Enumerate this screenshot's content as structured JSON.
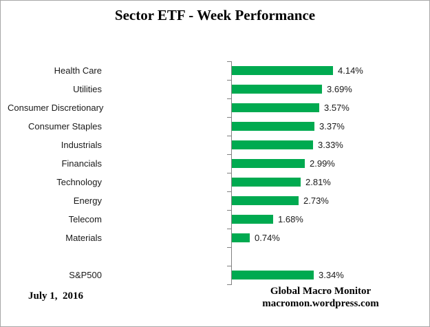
{
  "title": "Sector ETF - Week Performance",
  "footer": {
    "date": "July 1,  2016",
    "source_line1": "Global Macro Monitor",
    "source_line2": "macromon.wordpress.com"
  },
  "colors": {
    "bar": "#00AA50",
    "axis": "#808080",
    "border": "#a6a6a6",
    "text": "#1a1a1a"
  },
  "chart_data": {
    "type": "bar",
    "orientation": "horizontal",
    "title": "Sector ETF - Week Performance",
    "categories": [
      "Health Care",
      "Utilities",
      "Consumer Discretionary",
      "Consumer Staples",
      "Industrials",
      "Financials",
      "Technology",
      "Energy",
      "Telecom",
      "Materials",
      "",
      "S&P500"
    ],
    "values": [
      4.14,
      3.69,
      3.57,
      3.37,
      3.33,
      2.99,
      2.81,
      2.73,
      1.68,
      0.74,
      null,
      3.34
    ],
    "value_labels": [
      "4.14%",
      "3.69%",
      "3.57%",
      "3.37%",
      "3.33%",
      "2.99%",
      "2.81%",
      "2.73%",
      "1.68%",
      "0.74%",
      "",
      "3.34%"
    ],
    "xlabel": "",
    "ylabel": "",
    "xlim": [
      0,
      4.5
    ],
    "grid": false,
    "legend": false,
    "data_labels_position": "outside-end"
  }
}
